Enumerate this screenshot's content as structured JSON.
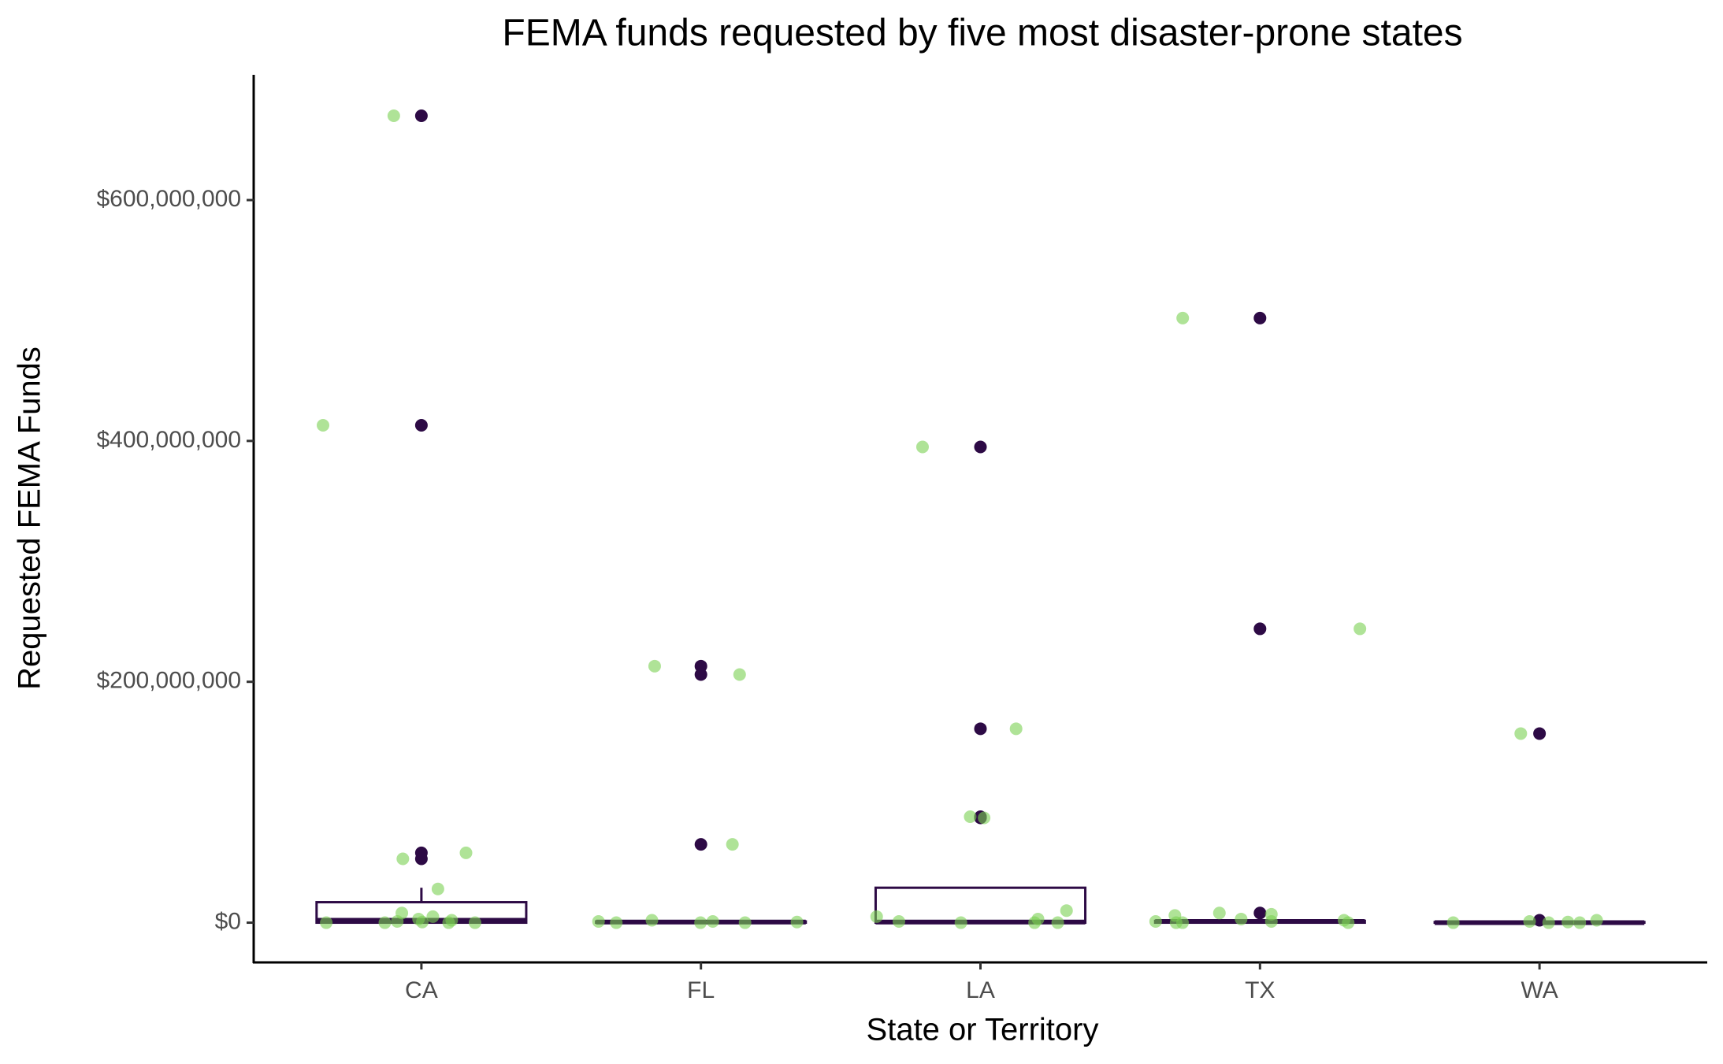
{
  "chart_data": {
    "type": "boxplot",
    "title": "FEMA funds requested by five most disaster-prone states",
    "x_label": "State or Territory",
    "y_label": "Requested FEMA Funds",
    "categories": [
      "CA",
      "FL",
      "LA",
      "TX",
      "WA"
    ],
    "box_color": "#2d0a45",
    "point_color": "#7ad151",
    "boxes": [
      {
        "low": 0,
        "q1": 0,
        "median": 2000000,
        "q3": 17000000,
        "high": 29000000,
        "outliers": [
          670000000,
          413000000,
          58000000,
          53000000
        ]
      },
      {
        "low": 0,
        "q1": 0,
        "median": 500000,
        "q3": 1000000,
        "high": 2000000,
        "outliers": [
          213000000,
          206000000,
          65000000
        ]
      },
      {
        "low": 0,
        "q1": 0,
        "median": 500000,
        "q3": 29000000,
        "high": 29000000,
        "outliers": [
          395000000,
          161000000,
          88000000,
          87000000
        ]
      },
      {
        "low": 0,
        "q1": 0,
        "median": 1000000,
        "q3": 1500000,
        "high": 3000000,
        "outliers": [
          502000000,
          244000000,
          8000000
        ]
      },
      {
        "low": 0,
        "q1": 0,
        "median": 0,
        "q3": 500000,
        "high": 1000000,
        "outliers": [
          157000000,
          2000000
        ]
      }
    ],
    "points": [
      [
        670000000,
        413000000,
        58000000,
        53000000,
        28000000,
        8000000,
        5000000,
        3000000,
        2000000,
        1000000,
        500000,
        0,
        0,
        0,
        0
      ],
      [
        213000000,
        206000000,
        65000000,
        2000000,
        1000000,
        1000000,
        500000,
        0,
        0,
        0
      ],
      [
        395000000,
        161000000,
        88000000,
        87000000,
        10000000,
        5000000,
        3000000,
        1000000,
        0,
        0,
        0
      ],
      [
        502000000,
        244000000,
        8000000,
        7000000,
        6000000,
        3000000,
        2000000,
        1000000,
        1000000,
        0,
        0,
        0
      ],
      [
        157000000,
        2000000,
        1000000,
        500000,
        0,
        0,
        0
      ]
    ],
    "ylim": [
      -33000000,
      704000000
    ],
    "yticks": [
      {
        "value": 0,
        "label": "$0"
      },
      {
        "value": 200000000,
        "label": "$200,000,000"
      },
      {
        "value": 400000000,
        "label": "$400,000,000"
      },
      {
        "value": 600000000,
        "label": "$600,000,000"
      }
    ]
  }
}
